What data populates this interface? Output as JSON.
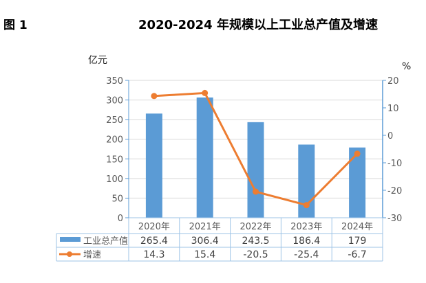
{
  "figure_label": "图 1",
  "chart_data": {
    "type": "bar+line",
    "title": "2020-2024 年规模以上工业总产值及增速",
    "categories": [
      "2020年",
      "2021年",
      "2022年",
      "2023年",
      "2024年"
    ],
    "y_left_label": "亿元",
    "y_right_label": "%",
    "y_left_range": [
      0,
      350
    ],
    "y_left_ticks": [
      0,
      50,
      100,
      150,
      200,
      250,
      300,
      350
    ],
    "y_right_range": [
      -30,
      20
    ],
    "y_right_ticks": [
      -30,
      -20,
      -10,
      0,
      10,
      20
    ],
    "grid": true,
    "legend_placement": "data-table",
    "series": [
      {
        "name": "工业总产值",
        "type": "bar",
        "axis": "left",
        "color": "#5b9bd5",
        "values": [
          265.4,
          306.4,
          243.5,
          186.4,
          179
        ],
        "labels": [
          "265.4",
          "306.4",
          "243.5",
          "186.4",
          "179"
        ]
      },
      {
        "name": "增速",
        "type": "line",
        "axis": "right",
        "color": "#ed7d31",
        "values": [
          14.3,
          15.4,
          -20.5,
          -25.4,
          -6.7
        ],
        "labels": [
          "14.3",
          "15.4",
          "-20.5",
          "-25.4",
          "-6.7"
        ]
      }
    ]
  }
}
